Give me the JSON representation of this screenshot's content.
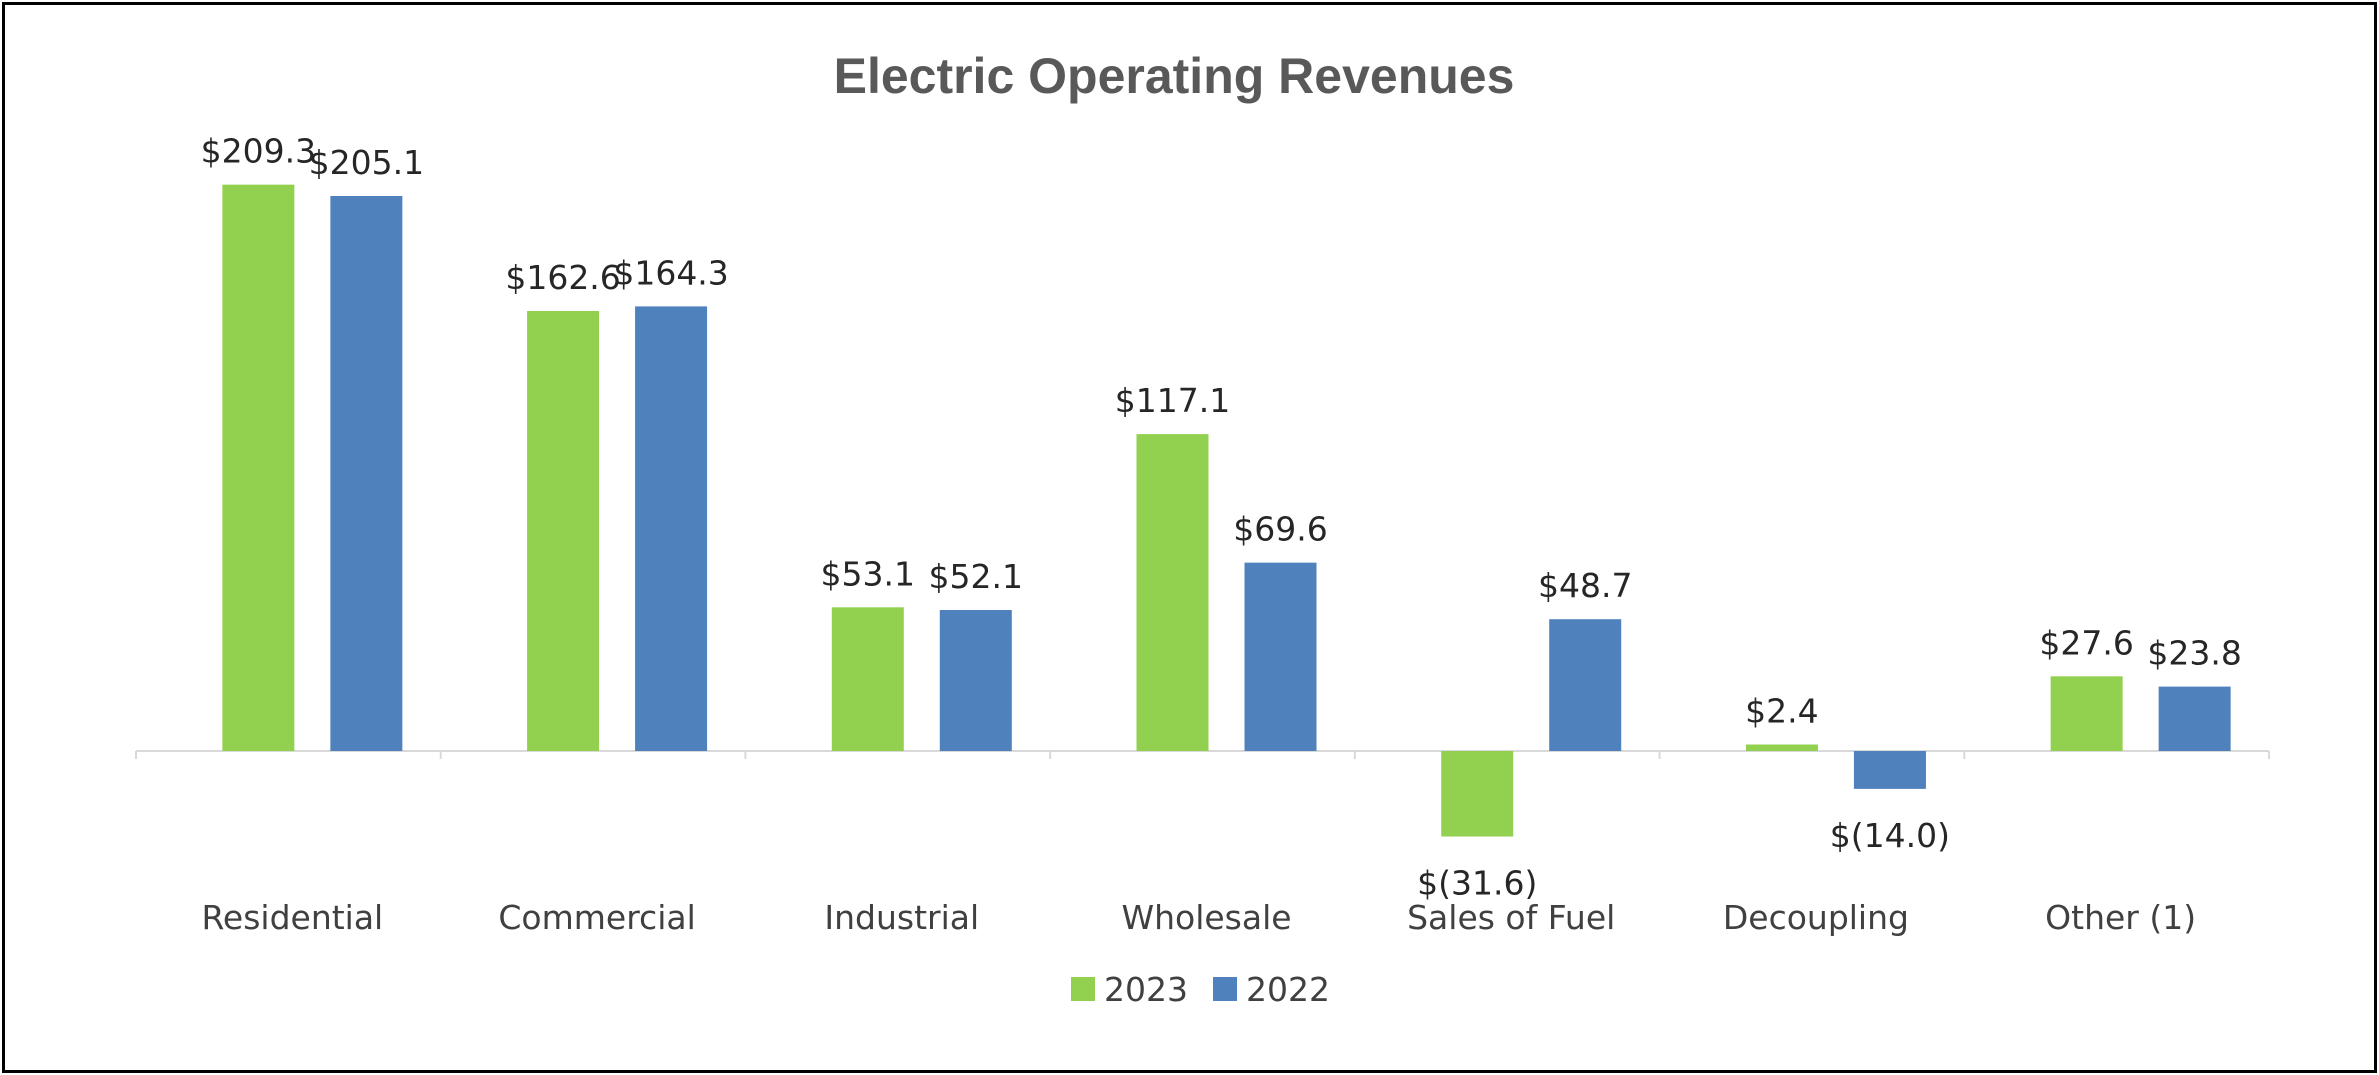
{
  "chart_data": {
    "type": "bar",
    "title": "Electric Operating Revenues",
    "xlabel": "",
    "ylabel": "",
    "categories": [
      "Residential",
      "Commercial",
      "Industrial",
      "Wholesale",
      "Sales of Fuel",
      "Decoupling",
      "Other (1)"
    ],
    "series": [
      {
        "name": "2023",
        "color": "#92D050",
        "values": [
          209.3,
          162.6,
          53.1,
          117.1,
          -31.6,
          2.4,
          27.6
        ],
        "labels": [
          "$209.3",
          "$162.6",
          "$53.1",
          "$117.1",
          "$(31.6)",
          "$2.4",
          "$27.6"
        ]
      },
      {
        "name": "2022",
        "color": "#4F81BD",
        "values": [
          205.1,
          164.3,
          52.1,
          69.6,
          48.7,
          -14.0,
          23.8
        ],
        "labels": [
          "$205.1",
          "$164.3",
          "$52.1",
          "$69.6",
          "$48.7",
          "$(14.0)",
          "$23.8"
        ]
      }
    ],
    "ylim": [
      -31.6,
      209.3
    ],
    "grid": false,
    "legend": "bottom-center"
  }
}
